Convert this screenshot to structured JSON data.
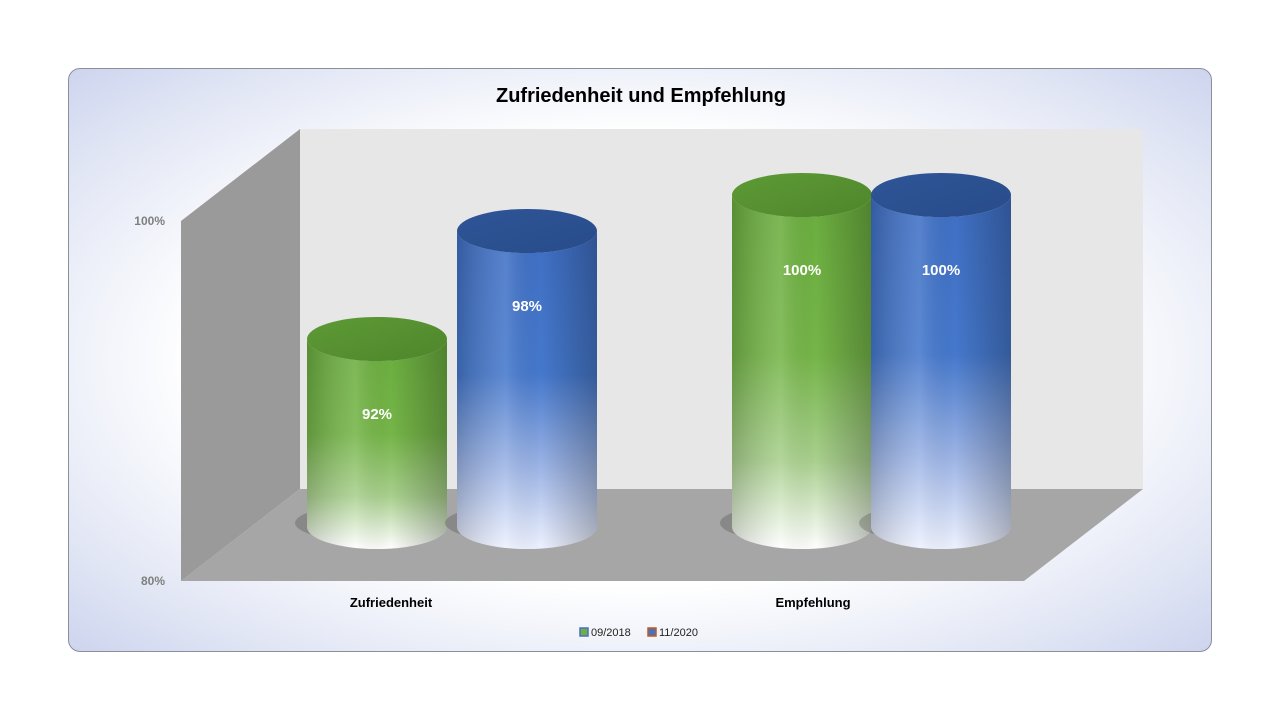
{
  "chart_data": {
    "type": "bar",
    "title": "Zufriedenheit und Empfehlung",
    "categories": [
      "Zufriedenheit",
      "Empfehlung"
    ],
    "series": [
      {
        "name": "09/2018",
        "values": [
          92,
          100
        ],
        "labels": [
          "92%",
          "100%"
        ],
        "color": "#70ad47"
      },
      {
        "name": "11/2020",
        "values": [
          98,
          100
        ],
        "labels": [
          "98%",
          "100%"
        ],
        "color": "#4472c4"
      }
    ],
    "ylim": [
      80,
      100
    ],
    "y_ticks": [
      "100%",
      "80%"
    ],
    "grid": false,
    "legend_position": "bottom",
    "style": "3d-cylinder"
  }
}
